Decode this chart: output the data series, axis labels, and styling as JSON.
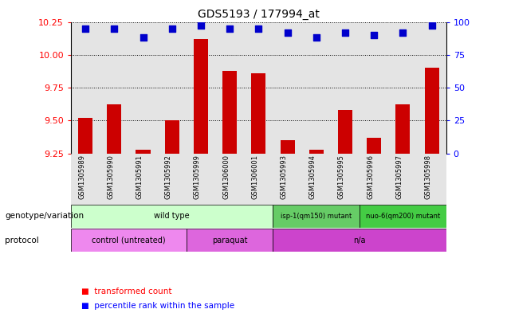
{
  "title": "GDS5193 / 177994_at",
  "samples": [
    "GSM1305989",
    "GSM1305990",
    "GSM1305991",
    "GSM1305992",
    "GSM1305999",
    "GSM1306000",
    "GSM1306001",
    "GSM1305993",
    "GSM1305994",
    "GSM1305995",
    "GSM1305996",
    "GSM1305997",
    "GSM1305998"
  ],
  "transformed_count": [
    9.52,
    9.62,
    9.28,
    9.5,
    10.12,
    9.88,
    9.86,
    9.35,
    9.28,
    9.58,
    9.37,
    9.62,
    9.9
  ],
  "percentile_rank": [
    95,
    95,
    88,
    95,
    97,
    95,
    95,
    92,
    88,
    92,
    90,
    92,
    97
  ],
  "ylim_left": [
    9.25,
    10.25
  ],
  "ylim_right": [
    0,
    100
  ],
  "yticks_left": [
    9.25,
    9.5,
    9.75,
    10.0,
    10.25
  ],
  "yticks_right": [
    0,
    25,
    50,
    75,
    100
  ],
  "bar_color": "#cc0000",
  "dot_color": "#0000cc",
  "bar_bottom": 9.25,
  "genotype_groups": [
    {
      "label": "wild type",
      "start": 0,
      "end": 7,
      "color": "#ccffcc"
    },
    {
      "label": "isp-1(qm150) mutant",
      "start": 7,
      "end": 10,
      "color": "#66cc66"
    },
    {
      "label": "nuo-6(qm200) mutant",
      "start": 10,
      "end": 13,
      "color": "#44cc44"
    }
  ],
  "protocol_groups": [
    {
      "label": "control (untreated)",
      "start": 0,
      "end": 4,
      "color": "#ee88ee"
    },
    {
      "label": "paraquat",
      "start": 4,
      "end": 7,
      "color": "#dd66dd"
    },
    {
      "label": "n/a",
      "start": 7,
      "end": 13,
      "color": "#cc44cc"
    }
  ],
  "genotype_label": "genotype/variation",
  "protocol_label": "protocol",
  "legend_bar_label": "transformed count",
  "legend_dot_label": "percentile rank within the sample",
  "background_main": "#ffffff",
  "sample_bg_color": "#d3d3d3"
}
